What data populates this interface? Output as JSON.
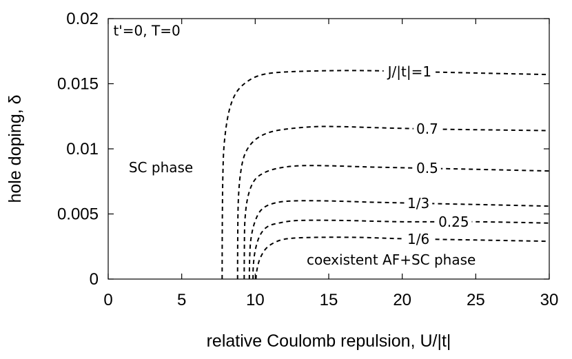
{
  "chart_data": {
    "type": "line",
    "xlabel": "relative Coulomb repulsion, U/|t|",
    "ylabel": "hole doping, δ",
    "xlim": [
      0,
      30
    ],
    "ylim": [
      0,
      0.02
    ],
    "xticks": [
      0,
      5,
      10,
      15,
      20,
      25,
      30
    ],
    "xtick_labels": [
      "0",
      "5",
      "10",
      "15",
      "20",
      "25",
      "30"
    ],
    "yticks": [
      0,
      0.005,
      0.01,
      0.015,
      0.02
    ],
    "ytick_labels": [
      "0",
      "0.005",
      "0.01",
      "0.015",
      "0.02"
    ],
    "grid": false,
    "line_style": "dashed",
    "annotations": [
      {
        "text": "t'=0, T=0",
        "x": 0.35,
        "y": 0.0187
      },
      {
        "text": "SC phase",
        "x": 1.4,
        "y": 0.0082
      },
      {
        "text": "coexistent AF+SC phase",
        "x": 13.5,
        "y": 0.0011
      }
    ],
    "series": [
      {
        "name": "J/|t|=1",
        "label_text": "J/|t|=1",
        "label_x": 20.5,
        "points": [
          [
            7.75,
            0
          ],
          [
            7.76,
            0.004
          ],
          [
            7.8,
            0.008
          ],
          [
            7.9,
            0.0105
          ],
          [
            8.2,
            0.0128
          ],
          [
            8.7,
            0.0143
          ],
          [
            9.5,
            0.0152
          ],
          [
            10.5,
            0.0157
          ],
          [
            12,
            0.0159
          ],
          [
            15,
            0.016
          ],
          [
            18,
            0.016
          ],
          [
            22,
            0.0159
          ],
          [
            26,
            0.0158
          ],
          [
            30,
            0.0157
          ]
        ]
      },
      {
        "name": "0.7",
        "label_text": "0.7",
        "label_x": 21.7,
        "points": [
          [
            8.8,
            0
          ],
          [
            8.81,
            0.003
          ],
          [
            8.85,
            0.006
          ],
          [
            9.0,
            0.0081
          ],
          [
            9.3,
            0.0096
          ],
          [
            9.9,
            0.0106
          ],
          [
            10.8,
            0.0112
          ],
          [
            12,
            0.0115
          ],
          [
            14,
            0.0117
          ],
          [
            16,
            0.0117
          ],
          [
            19,
            0.0116
          ],
          [
            23,
            0.0115
          ],
          [
            30,
            0.0114
          ]
        ]
      },
      {
        "name": "0.5",
        "label_text": "0.5",
        "label_x": 21.7,
        "points": [
          [
            9.25,
            0
          ],
          [
            9.26,
            0.002
          ],
          [
            9.3,
            0.0045
          ],
          [
            9.5,
            0.0063
          ],
          [
            9.9,
            0.0075
          ],
          [
            10.5,
            0.0081
          ],
          [
            11.5,
            0.0085
          ],
          [
            13,
            0.0087
          ],
          [
            15,
            0.0087
          ],
          [
            18,
            0.0086
          ],
          [
            22,
            0.0085
          ],
          [
            30,
            0.0083
          ]
        ]
      },
      {
        "name": "1/3",
        "label_text": "1/3",
        "label_x": 21.1,
        "points": [
          [
            9.6,
            0
          ],
          [
            9.62,
            0.0015
          ],
          [
            9.7,
            0.003
          ],
          [
            9.95,
            0.0043
          ],
          [
            10.4,
            0.0053
          ],
          [
            11.2,
            0.0058
          ],
          [
            12.5,
            0.006
          ],
          [
            15,
            0.006
          ],
          [
            18,
            0.0059
          ],
          [
            22,
            0.0058
          ],
          [
            30,
            0.0056
          ]
        ]
      },
      {
        "name": "0.25",
        "label_text": "0.25",
        "label_x": 23.5,
        "points": [
          [
            9.85,
            0
          ],
          [
            9.87,
            0.001
          ],
          [
            10.0,
            0.0022
          ],
          [
            10.3,
            0.0033
          ],
          [
            10.8,
            0.004
          ],
          [
            11.6,
            0.0043
          ],
          [
            13,
            0.0045
          ],
          [
            16,
            0.0045
          ],
          [
            20,
            0.0044
          ],
          [
            25,
            0.0044
          ],
          [
            30,
            0.0043
          ]
        ]
      },
      {
        "name": "1/6",
        "label_text": "1/6",
        "label_x": 21.1,
        "points": [
          [
            10.05,
            0
          ],
          [
            10.1,
            0.0006
          ],
          [
            10.3,
            0.0015
          ],
          [
            10.7,
            0.0023
          ],
          [
            11.3,
            0.0028
          ],
          [
            12.2,
            0.0031
          ],
          [
            14,
            0.0032
          ],
          [
            17,
            0.0032
          ],
          [
            20,
            0.0031
          ],
          [
            25,
            0.003
          ],
          [
            30,
            0.0029
          ]
        ]
      }
    ]
  }
}
